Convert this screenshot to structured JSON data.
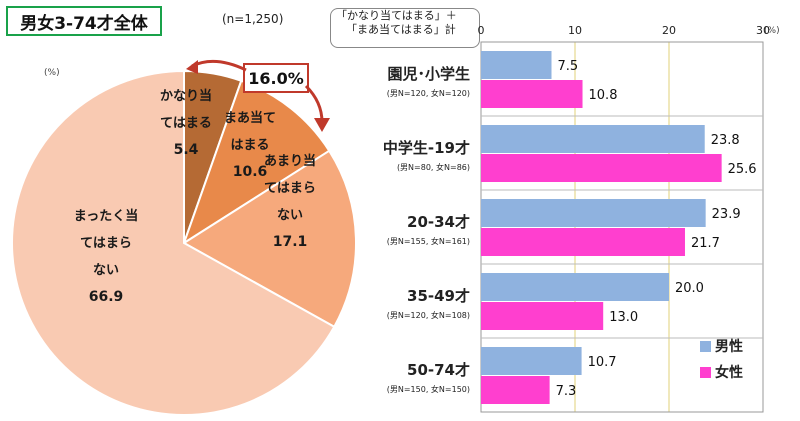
{
  "title": "男女3-74才全体",
  "n_note": "(n=1,250)",
  "pie_unit": "(%)",
  "bar_unit": "(%)",
  "criterion": {
    "line1": "「かなり当てはまる」＋",
    "line2": "「まあ当てはまる」計"
  },
  "callout": "16.0%",
  "colors": {
    "title_border": "#19a24a",
    "male": "#8fb2df",
    "female": "#ff3fcf",
    "slice1": "#b56a34",
    "slice2": "#e8894a",
    "slice3": "#f6a97c",
    "slice4": "#f9cab2",
    "callout_border": "#c0392b",
    "gridline": "#e2d27a"
  },
  "chart_data": [
    {
      "type": "pie",
      "title": "",
      "slices": [
        {
          "label_lines": [
            "かなり当",
            "てはまる"
          ],
          "value": 5.4,
          "value_text": "5.4"
        },
        {
          "label_lines": [
            "まあ当て",
            "はまる"
          ],
          "value": 10.6,
          "value_text": "10.6"
        },
        {
          "label_lines": [
            "あまり当",
            "てはまら",
            "ない"
          ],
          "value": 17.1,
          "value_text": "17.1"
        },
        {
          "label_lines": [
            "まったく当",
            "てはまら",
            "ない"
          ],
          "value": 66.9,
          "value_text": "66.9"
        }
      ]
    },
    {
      "type": "bar",
      "orientation": "horizontal",
      "categories": [
        {
          "name": "園児･小学生",
          "n": "(男N=120, 女N=120)"
        },
        {
          "name": "中学生-19才",
          "n": "(男N=80, 女N=86)"
        },
        {
          "name": "20-34才",
          "n": "(男N=155, 女N=161)"
        },
        {
          "name": "35-49才",
          "n": "(男N=120, 女N=108)"
        },
        {
          "name": "50-74才",
          "n": "(男N=150, 女N=150)"
        }
      ],
      "series": [
        {
          "name": "男性",
          "values": [
            7.5,
            23.8,
            23.9,
            20.0,
            10.7
          ],
          "labels": [
            "7.5",
            "23.8",
            "23.9",
            "20.0",
            "10.7"
          ]
        },
        {
          "name": "女性",
          "values": [
            10.8,
            25.6,
            21.7,
            13.0,
            7.3
          ],
          "labels": [
            "10.8",
            "25.6",
            "21.7",
            "13.0",
            "7.3"
          ]
        }
      ],
      "xlim": [
        0,
        30
      ],
      "ticks": [
        "0",
        "10",
        "20",
        "30"
      ],
      "grid": true,
      "legend_position": "bottom-right"
    }
  ]
}
